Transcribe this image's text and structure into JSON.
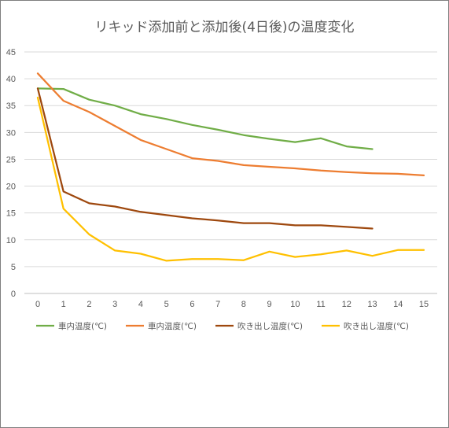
{
  "chart_data": {
    "type": "line",
    "title": "リキッド添加前と添加後(4日後)の温度変化",
    "xlabel": "",
    "ylabel": "",
    "x": [
      0,
      1,
      2,
      3,
      4,
      5,
      6,
      7,
      8,
      9,
      10,
      11,
      12,
      13,
      14,
      15
    ],
    "ylim": [
      0,
      45
    ],
    "yticks": [
      0,
      5,
      10,
      15,
      20,
      25,
      30,
      35,
      40,
      45
    ],
    "grid": true,
    "legend_position": "bottom",
    "series": [
      {
        "name": "車内温度(℃)",
        "color": "#70ad47",
        "values": [
          38.2,
          38.1,
          36.1,
          35.0,
          33.4,
          32.5,
          31.4,
          30.5,
          29.5,
          28.8,
          28.2,
          28.9,
          27.4,
          26.9,
          null,
          null
        ]
      },
      {
        "name": "車内温度(℃)",
        "color": "#ed7d31",
        "values": [
          41.0,
          35.9,
          33.8,
          31.2,
          28.6,
          26.9,
          25.2,
          24.7,
          23.9,
          23.6,
          23.3,
          22.9,
          22.6,
          22.4,
          22.3,
          22.0
        ]
      },
      {
        "name": "吹き出し温度(℃)",
        "color": "#9e480e",
        "values": [
          38.2,
          19.0,
          16.8,
          16.2,
          15.2,
          14.6,
          14.0,
          13.6,
          13.1,
          13.1,
          12.7,
          12.7,
          12.4,
          12.1,
          null,
          null
        ]
      },
      {
        "name": "吹き出し温度(℃)",
        "color": "#ffc000",
        "values": [
          36.5,
          15.8,
          11.0,
          8.0,
          7.4,
          6.1,
          6.4,
          6.4,
          6.2,
          7.8,
          6.8,
          7.3,
          8.0,
          7.0,
          8.1,
          8.1
        ]
      }
    ]
  }
}
